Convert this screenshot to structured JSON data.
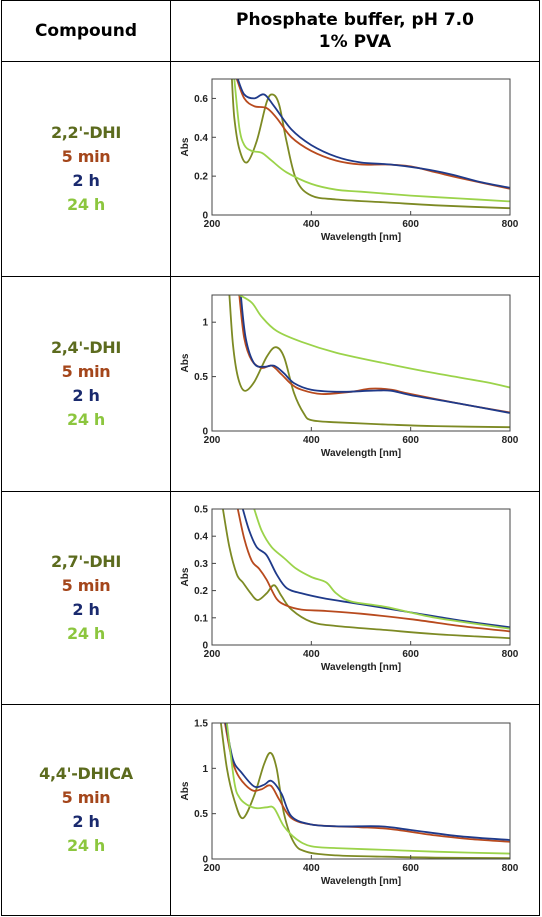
{
  "header": {
    "compound": "Compound",
    "condition_line1": "Phosphate buffer, pH 7.0",
    "condition_line2": "1% PVA"
  },
  "rows": [
    {
      "name": "2,2'-DHI",
      "t1": "5 min",
      "t2": "2 h",
      "t3": "24 h"
    },
    {
      "name": "2,4'-DHI",
      "t1": "5 min",
      "t2": "2 h",
      "t3": "24 h"
    },
    {
      "name": "2,7'-DHI",
      "t1": "5 min",
      "t2": "2 h",
      "t3": "24 h"
    },
    {
      "name": "4,4'-DHICA",
      "t1": "5 min",
      "t2": "2 h",
      "t3": "24 h"
    }
  ],
  "colors": {
    "initial": "#7d8a24",
    "5 min": "#b84a1e",
    "2 h": "#1f3a8a",
    "24 h": "#9bd34a"
  },
  "chart_data": [
    {
      "type": "line",
      "xlabel": "Wavelength [nm]",
      "ylabel": "Abs",
      "xlim": [
        200,
        800
      ],
      "ylim": [
        0,
        0.7
      ],
      "xticks": [
        200,
        400,
        600,
        800
      ],
      "yticks": [
        0,
        0.2,
        0.4,
        0.6
      ],
      "series": [
        {
          "values": [
            [
              240,
              0.7
            ],
            [
              245,
              0.5
            ],
            [
              255,
              0.34
            ],
            [
              270,
              0.27
            ],
            [
              290,
              0.38
            ],
            [
              310,
              0.58
            ],
            [
              322,
              0.62
            ],
            [
              335,
              0.57
            ],
            [
              350,
              0.38
            ],
            [
              370,
              0.18
            ],
            [
              400,
              0.1
            ],
            [
              450,
              0.08
            ],
            [
              550,
              0.065
            ],
            [
              650,
              0.05
            ],
            [
              800,
              0.035
            ]
          ]
        },
        {
          "values": [
            [
              250,
              0.7
            ],
            [
              265,
              0.6
            ],
            [
              285,
              0.56
            ],
            [
              310,
              0.55
            ],
            [
              330,
              0.5
            ],
            [
              360,
              0.4
            ],
            [
              400,
              0.33
            ],
            [
              450,
              0.28
            ],
            [
              500,
              0.26
            ],
            [
              550,
              0.26
            ],
            [
              600,
              0.25
            ],
            [
              650,
              0.22
            ],
            [
              700,
              0.19
            ],
            [
              800,
              0.135
            ]
          ]
        },
        {
          "values": [
            [
              252,
              0.7
            ],
            [
              265,
              0.62
            ],
            [
              285,
              0.6
            ],
            [
              305,
              0.62
            ],
            [
              325,
              0.56
            ],
            [
              360,
              0.44
            ],
            [
              400,
              0.36
            ],
            [
              450,
              0.3
            ],
            [
              500,
              0.27
            ],
            [
              560,
              0.26
            ],
            [
              620,
              0.24
            ],
            [
              680,
              0.21
            ],
            [
              740,
              0.17
            ],
            [
              800,
              0.14
            ]
          ]
        },
        {
          "values": [
            [
              245,
              0.7
            ],
            [
              255,
              0.45
            ],
            [
              265,
              0.36
            ],
            [
              280,
              0.33
            ],
            [
              300,
              0.32
            ],
            [
              320,
              0.28
            ],
            [
              350,
              0.22
            ],
            [
              400,
              0.16
            ],
            [
              450,
              0.13
            ],
            [
              500,
              0.12
            ],
            [
              600,
              0.1
            ],
            [
              700,
              0.085
            ],
            [
              800,
              0.07
            ]
          ]
        }
      ]
    },
    {
      "type": "line",
      "xlabel": "Wavelength [nm]",
      "ylabel": "Abs",
      "xlim": [
        200,
        800
      ],
      "ylim": [
        0,
        1.25
      ],
      "xticks": [
        200,
        400,
        600,
        800
      ],
      "yticks": [
        0,
        0.5,
        1
      ],
      "series": [
        {
          "values": [
            [
              235,
              1.25
            ],
            [
              242,
              0.8
            ],
            [
              252,
              0.5
            ],
            [
              265,
              0.37
            ],
            [
              285,
              0.45
            ],
            [
              310,
              0.68
            ],
            [
              328,
              0.77
            ],
            [
              345,
              0.68
            ],
            [
              365,
              0.35
            ],
            [
              385,
              0.16
            ],
            [
              400,
              0.1
            ],
            [
              450,
              0.08
            ],
            [
              550,
              0.06
            ],
            [
              650,
              0.045
            ],
            [
              800,
              0.035
            ]
          ]
        },
        {
          "values": [
            [
              255,
              1.25
            ],
            [
              265,
              0.85
            ],
            [
              280,
              0.65
            ],
            [
              300,
              0.58
            ],
            [
              320,
              0.6
            ],
            [
              340,
              0.52
            ],
            [
              360,
              0.43
            ],
            [
              380,
              0.38
            ],
            [
              420,
              0.34
            ],
            [
              480,
              0.36
            ],
            [
              520,
              0.39
            ],
            [
              560,
              0.38
            ],
            [
              600,
              0.34
            ],
            [
              700,
              0.25
            ],
            [
              800,
              0.17
            ]
          ]
        },
        {
          "values": [
            [
              258,
              1.25
            ],
            [
              268,
              0.85
            ],
            [
              285,
              0.62
            ],
            [
              305,
              0.59
            ],
            [
              325,
              0.6
            ],
            [
              345,
              0.53
            ],
            [
              365,
              0.44
            ],
            [
              400,
              0.38
            ],
            [
              460,
              0.36
            ],
            [
              520,
              0.37
            ],
            [
              560,
              0.37
            ],
            [
              600,
              0.33
            ],
            [
              700,
              0.25
            ],
            [
              800,
              0.165
            ]
          ]
        },
        {
          "values": [
            [
              255,
              1.25
            ],
            [
              280,
              1.18
            ],
            [
              300,
              1.05
            ],
            [
              330,
              0.92
            ],
            [
              380,
              0.82
            ],
            [
              450,
              0.72
            ],
            [
              550,
              0.62
            ],
            [
              650,
              0.53
            ],
            [
              750,
              0.45
            ],
            [
              800,
              0.4
            ]
          ]
        }
      ]
    },
    {
      "type": "line",
      "xlabel": "Wavelength [nm]",
      "ylabel": "Abs",
      "xlim": [
        200,
        800
      ],
      "ylim": [
        0,
        0.5
      ],
      "xticks": [
        200,
        400,
        600,
        800
      ],
      "yticks": [
        0,
        0.1,
        0.2,
        0.3,
        0.4,
        0.5
      ],
      "series": [
        {
          "values": [
            [
              222,
              0.5
            ],
            [
              235,
              0.36
            ],
            [
              250,
              0.26
            ],
            [
              262,
              0.23
            ],
            [
              278,
              0.19
            ],
            [
              292,
              0.165
            ],
            [
              310,
              0.19
            ],
            [
              325,
              0.22
            ],
            [
              340,
              0.18
            ],
            [
              360,
              0.13
            ],
            [
              400,
              0.085
            ],
            [
              450,
              0.07
            ],
            [
              550,
              0.055
            ],
            [
              650,
              0.04
            ],
            [
              800,
              0.025
            ]
          ]
        },
        {
          "values": [
            [
              252,
              0.5
            ],
            [
              265,
              0.39
            ],
            [
              280,
              0.31
            ],
            [
              295,
              0.28
            ],
            [
              310,
              0.24
            ],
            [
              330,
              0.17
            ],
            [
              350,
              0.145
            ],
            [
              380,
              0.13
            ],
            [
              430,
              0.125
            ],
            [
              500,
              0.115
            ],
            [
              600,
              0.095
            ],
            [
              700,
              0.07
            ],
            [
              800,
              0.05
            ]
          ]
        },
        {
          "values": [
            [
              262,
              0.5
            ],
            [
              275,
              0.42
            ],
            [
              290,
              0.36
            ],
            [
              310,
              0.33
            ],
            [
              330,
              0.26
            ],
            [
              350,
              0.21
            ],
            [
              380,
              0.19
            ],
            [
              430,
              0.17
            ],
            [
              500,
              0.15
            ],
            [
              600,
              0.12
            ],
            [
              700,
              0.09
            ],
            [
              800,
              0.065
            ]
          ]
        },
        {
          "values": [
            [
              285,
              0.5
            ],
            [
              300,
              0.42
            ],
            [
              320,
              0.36
            ],
            [
              345,
              0.32
            ],
            [
              370,
              0.28
            ],
            [
              400,
              0.25
            ],
            [
              430,
              0.23
            ],
            [
              450,
              0.19
            ],
            [
              480,
              0.16
            ],
            [
              550,
              0.14
            ],
            [
              650,
              0.1
            ],
            [
              800,
              0.06
            ]
          ]
        }
      ]
    },
    {
      "type": "line",
      "xlabel": "Wavelength [nm]",
      "ylabel": "Abs",
      "xlim": [
        200,
        800
      ],
      "ylim": [
        0,
        1.5
      ],
      "xticks": [
        200,
        400,
        600,
        800
      ],
      "yticks": [
        0,
        0.5,
        1,
        1.5
      ],
      "series": [
        {
          "values": [
            [
              218,
              1.5
            ],
            [
              230,
              1.0
            ],
            [
              245,
              0.65
            ],
            [
              262,
              0.45
            ],
            [
              285,
              0.7
            ],
            [
              305,
              1.05
            ],
            [
              318,
              1.17
            ],
            [
              330,
              1.0
            ],
            [
              345,
              0.5
            ],
            [
              365,
              0.18
            ],
            [
              390,
              0.08
            ],
            [
              450,
              0.04
            ],
            [
              550,
              0.025
            ],
            [
              650,
              0.015
            ],
            [
              800,
              0.01
            ]
          ]
        },
        {
          "values": [
            [
              226,
              1.5
            ],
            [
              240,
              1.1
            ],
            [
              255,
              0.9
            ],
            [
              280,
              0.76
            ],
            [
              300,
              0.77
            ],
            [
              318,
              0.81
            ],
            [
              335,
              0.66
            ],
            [
              360,
              0.45
            ],
            [
              400,
              0.38
            ],
            [
              450,
              0.36
            ],
            [
              500,
              0.35
            ],
            [
              560,
              0.33
            ],
            [
              650,
              0.26
            ],
            [
              720,
              0.22
            ],
            [
              800,
              0.19
            ]
          ]
        },
        {
          "values": [
            [
              228,
              1.5
            ],
            [
              242,
              1.1
            ],
            [
              260,
              0.95
            ],
            [
              285,
              0.8
            ],
            [
              305,
              0.82
            ],
            [
              320,
              0.86
            ],
            [
              340,
              0.72
            ],
            [
              360,
              0.47
            ],
            [
              400,
              0.38
            ],
            [
              460,
              0.36
            ],
            [
              540,
              0.36
            ],
            [
              600,
              0.32
            ],
            [
              700,
              0.25
            ],
            [
              800,
              0.21
            ]
          ]
        },
        {
          "values": [
            [
              230,
              1.5
            ],
            [
              245,
              0.85
            ],
            [
              255,
              0.68
            ],
            [
              270,
              0.6
            ],
            [
              290,
              0.56
            ],
            [
              310,
              0.57
            ],
            [
              325,
              0.56
            ],
            [
              345,
              0.36
            ],
            [
              370,
              0.22
            ],
            [
              400,
              0.14
            ],
            [
              450,
              0.12
            ],
            [
              550,
              0.1
            ],
            [
              650,
              0.08
            ],
            [
              800,
              0.06
            ]
          ]
        }
      ]
    }
  ]
}
